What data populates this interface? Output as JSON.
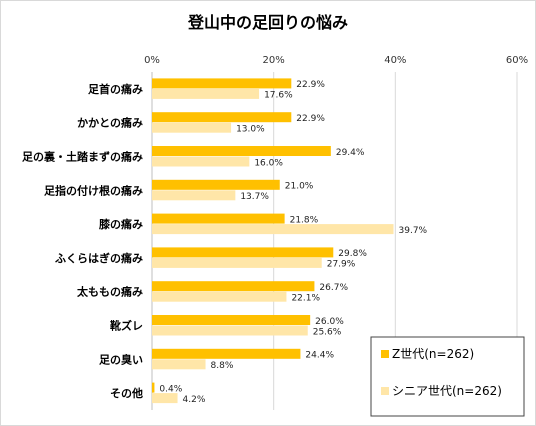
{
  "chart_data": {
    "type": "bar",
    "orientation": "horizontal",
    "title": "登山中の足回りの悩み",
    "categories": [
      "足首の痛み",
      "かかとの痛み",
      "足の裏・土踏まずの痛み",
      "足指の付け根の痛み",
      "膝の痛み",
      "ふくらはぎの痛み",
      "太ももの痛み",
      "靴ズレ",
      "足の臭い",
      "その他"
    ],
    "series": [
      {
        "name": "Z世代(n=262)",
        "color": "#FFC000",
        "values": [
          22.9,
          22.9,
          29.4,
          21.0,
          21.8,
          29.8,
          26.7,
          26.0,
          24.4,
          0.4
        ],
        "labels": [
          "22.9%",
          "22.9%",
          "29.4%",
          "21.0%",
          "21.8%",
          "29.8%",
          "26.7%",
          "26.0%",
          "24.4%",
          "0.4%"
        ]
      },
      {
        "name": "シニア世代(n=262)",
        "color": "#FFE6A8",
        "values": [
          17.6,
          13.0,
          16.0,
          13.7,
          39.7,
          27.9,
          22.1,
          25.6,
          8.8,
          4.2
        ],
        "labels": [
          "17.6%",
          "13.0%",
          "16.0%",
          "13.7%",
          "39.7%",
          "27.9%",
          "22.1%",
          "25.6%",
          "8.8%",
          "4.2%"
        ]
      }
    ],
    "xlim": [
      0,
      60
    ],
    "ticks": [
      "0%",
      "20%",
      "40%",
      "60%"
    ],
    "grid": true,
    "legend_position": "bottom-right"
  }
}
